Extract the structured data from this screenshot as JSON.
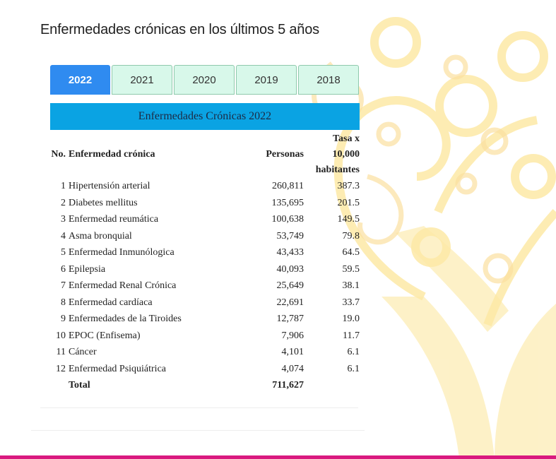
{
  "page": {
    "title": "Enfermedades crónicas en los últimos 5 años"
  },
  "tabs": [
    {
      "label": "2022",
      "active": true
    },
    {
      "label": "2021",
      "active": false
    },
    {
      "label": "2020",
      "active": false
    },
    {
      "label": "2019",
      "active": false
    },
    {
      "label": "2018",
      "active": false
    }
  ],
  "table": {
    "caption": "Enfermedades Crónicas 2022",
    "headers": {
      "no": "No.",
      "disease": "Enfermedad crónica",
      "people": "Personas",
      "rate_line1": "Tasa x",
      "rate_line2": "10,000",
      "rate_line3": "habitantes"
    },
    "rows": [
      {
        "no": "1",
        "disease": "Hipertensión arterial",
        "people": "260,811",
        "rate": "387.3"
      },
      {
        "no": "2",
        "disease": "Diabetes mellitus",
        "people": "135,695",
        "rate": "201.5"
      },
      {
        "no": "3",
        "disease": "Enfermedad reumática",
        "people": "100,638",
        "rate": "149.5"
      },
      {
        "no": "4",
        "disease": "Asma bronquial",
        "people": "53,749",
        "rate": "79.8"
      },
      {
        "no": "5",
        "disease": "Enfermedad Inmunólogica",
        "people": "43,433",
        "rate": "64.5"
      },
      {
        "no": "6",
        "disease": "Epilepsia",
        "people": "40,093",
        "rate": "59.5"
      },
      {
        "no": "7",
        "disease": "Enfermedad Renal Crónica",
        "people": "25,649",
        "rate": "38.1"
      },
      {
        "no": "8",
        "disease": "Enfermedad cardíaca",
        "people": "22,691",
        "rate": "33.7"
      },
      {
        "no": "9",
        "disease": "Enfermedades de la Tiroides",
        "people": "12,787",
        "rate": "19.0"
      },
      {
        "no": "10",
        "disease": "EPOC (Enfisema)",
        "people": "7,906",
        "rate": "11.7"
      },
      {
        "no": "11",
        "disease": "Cáncer",
        "people": "4,101",
        "rate": "6.1"
      },
      {
        "no": "12",
        "disease": "Enfermedad Psiquiátrica",
        "people": "4,074",
        "rate": "6.1"
      }
    ],
    "total": {
      "label": "Total",
      "people": "711,627"
    }
  },
  "colors": {
    "active_tab": "#2f8bf0",
    "inactive_tab": "#d8f8ea",
    "caption_bar": "#0aa3e3",
    "footer_bar": "#d9197f",
    "background_tree": "#fbe7a1"
  },
  "icons": {
    "background": "decorative-tree-icon"
  }
}
